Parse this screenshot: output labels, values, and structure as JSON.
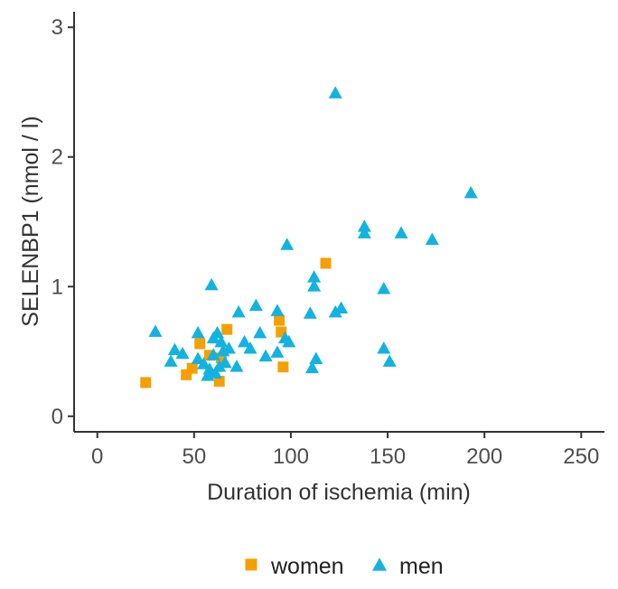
{
  "chart_data": {
    "type": "scatter",
    "xlabel": "Duration of ischemia (min)",
    "ylabel": "SELENBP1 (nmol / l)",
    "xlim": [
      -12,
      262
    ],
    "ylim": [
      -0.12,
      3.12
    ],
    "x_ticks": [
      "0",
      "50",
      "100",
      "150",
      "200",
      "250"
    ],
    "x_tick_values": [
      0,
      50,
      100,
      150,
      200,
      250
    ],
    "y_ticks": [
      "0",
      "1",
      "2",
      "3"
    ],
    "y_tick_values": [
      0,
      1,
      2,
      3
    ],
    "grid": false,
    "legend_position": "bottom",
    "series": [
      {
        "name": "women",
        "marker": "square",
        "color": "#F5A000",
        "points": [
          {
            "x": 25,
            "y": 0.26
          },
          {
            "x": 46,
            "y": 0.32
          },
          {
            "x": 49,
            "y": 0.37
          },
          {
            "x": 53,
            "y": 0.56
          },
          {
            "x": 58,
            "y": 0.47
          },
          {
            "x": 63,
            "y": 0.27
          },
          {
            "x": 64,
            "y": 0.45
          },
          {
            "x": 67,
            "y": 0.67
          },
          {
            "x": 94,
            "y": 0.74
          },
          {
            "x": 95,
            "y": 0.65
          },
          {
            "x": 96,
            "y": 0.38
          },
          {
            "x": 118,
            "y": 1.18
          }
        ]
      },
      {
        "name": "men",
        "marker": "triangle",
        "color": "#12B3E0",
        "points": [
          {
            "x": 30,
            "y": 0.65
          },
          {
            "x": 38,
            "y": 0.42
          },
          {
            "x": 40,
            "y": 0.51
          },
          {
            "x": 44,
            "y": 0.48
          },
          {
            "x": 52,
            "y": 0.64
          },
          {
            "x": 52,
            "y": 0.44
          },
          {
            "x": 55,
            "y": 0.4
          },
          {
            "x": 57,
            "y": 0.31
          },
          {
            "x": 58,
            "y": 0.36
          },
          {
            "x": 59,
            "y": 1.01
          },
          {
            "x": 60,
            "y": 0.6
          },
          {
            "x": 60,
            "y": 0.47
          },
          {
            "x": 61,
            "y": 0.33
          },
          {
            "x": 62,
            "y": 0.64
          },
          {
            "x": 63,
            "y": 0.38
          },
          {
            "x": 64,
            "y": 0.57
          },
          {
            "x": 65,
            "y": 0.5
          },
          {
            "x": 66,
            "y": 0.41
          },
          {
            "x": 68,
            "y": 0.52
          },
          {
            "x": 72,
            "y": 0.38
          },
          {
            "x": 73,
            "y": 0.8
          },
          {
            "x": 76,
            "y": 0.57
          },
          {
            "x": 79,
            "y": 0.52
          },
          {
            "x": 82,
            "y": 0.85
          },
          {
            "x": 84,
            "y": 0.64
          },
          {
            "x": 87,
            "y": 0.46
          },
          {
            "x": 93,
            "y": 0.81
          },
          {
            "x": 93,
            "y": 0.49
          },
          {
            "x": 97,
            "y": 0.6
          },
          {
            "x": 98,
            "y": 1.32
          },
          {
            "x": 99,
            "y": 0.57
          },
          {
            "x": 110,
            "y": 0.79
          },
          {
            "x": 111,
            "y": 0.37
          },
          {
            "x": 112,
            "y": 1.0
          },
          {
            "x": 112,
            "y": 1.07
          },
          {
            "x": 113,
            "y": 0.44
          },
          {
            "x": 123,
            "y": 2.49
          },
          {
            "x": 123,
            "y": 0.8
          },
          {
            "x": 126,
            "y": 0.83
          },
          {
            "x": 138,
            "y": 1.46
          },
          {
            "x": 138,
            "y": 1.41
          },
          {
            "x": 148,
            "y": 0.98
          },
          {
            "x": 148,
            "y": 0.52
          },
          {
            "x": 151,
            "y": 0.42
          },
          {
            "x": 157,
            "y": 1.41
          },
          {
            "x": 173,
            "y": 1.36
          },
          {
            "x": 193,
            "y": 1.72
          }
        ]
      }
    ]
  }
}
